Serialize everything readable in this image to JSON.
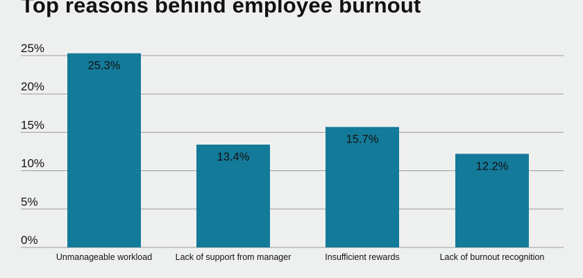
{
  "chart_data": {
    "type": "bar",
    "title": "Top reasons behind employee burnout",
    "categories": [
      "Unmanageable workload",
      "Lack of support from manager",
      "Insufficient rewards",
      "Lack of burnout recognition"
    ],
    "values": [
      25.3,
      13.4,
      15.7,
      12.2
    ],
    "data_labels": [
      "25.3%",
      "13.4%",
      "15.7%",
      "12.2%"
    ],
    "y_ticks": [
      0,
      5,
      10,
      15,
      20,
      25
    ],
    "y_tick_labels": [
      "0%",
      "5%",
      "10%",
      "15%",
      "20%",
      "25%"
    ],
    "ylim": [
      0,
      25
    ],
    "xlabel": "",
    "ylabel": "",
    "grid": true,
    "bar_color": "#147a99",
    "grid_color": "#9a9a9a"
  }
}
